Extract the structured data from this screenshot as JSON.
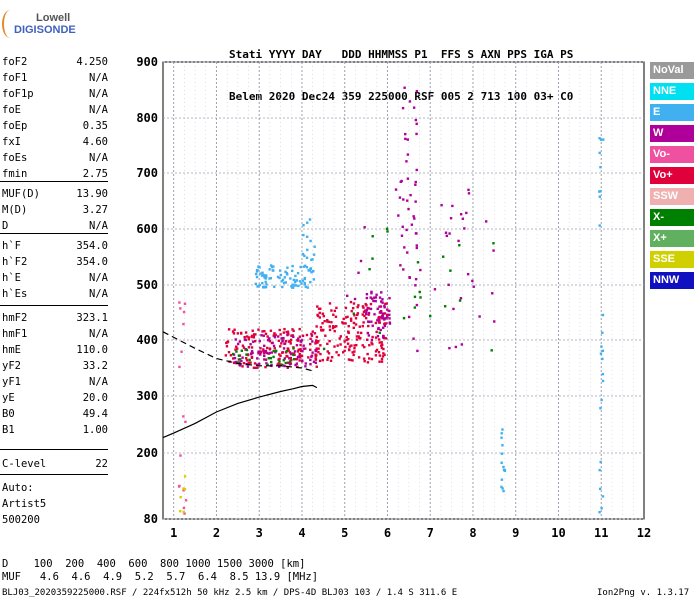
{
  "logo": {
    "line1": "Lowell",
    "line2": "DIGISONDE"
  },
  "header": {
    "row1": "Stati YYYY DAY   DDD HHMMSS P1  FFS S AXN PPS IGA PS",
    "row2": "Belem 2020 Dec24 359 225000 RSF 005 2 713 100 03+ C0"
  },
  "params": [
    {
      "k": "foF2",
      "v": "4.250"
    },
    {
      "k": "foF1",
      "v": "N/A"
    },
    {
      "k": "foF1p",
      "v": "N/A"
    },
    {
      "k": "foE",
      "v": "N/A"
    },
    {
      "k": "foEp",
      "v": "0.35"
    },
    {
      "k": "fxI",
      "v": "4.60"
    },
    {
      "k": "foEs",
      "v": "N/A"
    },
    {
      "k": "fmin",
      "v": "2.75"
    },
    {
      "k": "MUF(D)",
      "v": "13.90"
    },
    {
      "k": "M(D)",
      "v": "3.27"
    },
    {
      "k": "D",
      "v": "N/A"
    },
    {
      "k": "h`F",
      "v": "354.0"
    },
    {
      "k": "h`F2",
      "v": "354.0"
    },
    {
      "k": "h`E",
      "v": "N/A"
    },
    {
      "k": "h`Es",
      "v": "N/A"
    },
    {
      "k": "hmF2",
      "v": "323.1"
    },
    {
      "k": "hmF1",
      "v": "N/A"
    },
    {
      "k": "hmE",
      "v": "110.0"
    },
    {
      "k": "yF2",
      "v": "33.2"
    },
    {
      "k": "yF1",
      "v": "N/A"
    },
    {
      "k": "yE",
      "v": "20.0"
    },
    {
      "k": "B0",
      "v": "49.4"
    },
    {
      "k": "B1",
      "v": "1.00"
    },
    {
      "k": "C-level",
      "v": "22"
    }
  ],
  "auto": {
    "line1": "Auto:",
    "line2": "Artist5",
    "line3": "500200"
  },
  "legend": [
    {
      "label": "NoVal",
      "bg": "#9a9a9a",
      "fg": "#ffffff"
    },
    {
      "label": "NNE",
      "bg": "#00e0f0",
      "fg": "#ffffff"
    },
    {
      "label": "E",
      "bg": "#40b0f0",
      "fg": "#ffffff"
    },
    {
      "label": "W",
      "bg": "#b0009a",
      "fg": "#ffffff"
    },
    {
      "label": "Vo-",
      "bg": "#f050a0",
      "fg": "#ffffff"
    },
    {
      "label": "Vo+",
      "bg": "#e0003a",
      "fg": "#ffffff"
    },
    {
      "label": "SSW",
      "bg": "#f0b0b0",
      "fg": "#ffffff"
    },
    {
      "label": "X-",
      "bg": "#008000",
      "fg": "#ffffff"
    },
    {
      "label": "X+",
      "bg": "#60b060",
      "fg": "#ffffff"
    },
    {
      "label": "SSE",
      "bg": "#d0d000",
      "fg": "#ffffff"
    },
    {
      "label": "NNW",
      "bg": "#1010c0",
      "fg": "#ffffff"
    }
  ],
  "footer": {
    "drow": "D    100  200  400  600  800 1000 1500 3000 [km]",
    "murow": "MUF   4.6  4.6  4.9  5.2  5.7  6.4  8.5 13.9 [MHz]",
    "file": "BLJ03_2020359225000.RSF / 224fx512h 50 kHz 2.5 km / DPS-4D BLJ03 103 / 1.4 S 311.6 E",
    "version": "Ion2Png v. 1.3.17"
  },
  "chart_data": {
    "type": "scatter",
    "xlim": [
      0.75,
      12
    ],
    "ylim": [
      80,
      900
    ],
    "xticks": [
      1,
      2,
      3,
      4,
      5,
      6,
      7,
      8,
      9,
      10,
      11,
      12
    ],
    "yticks": [
      80,
      200,
      300,
      400,
      500,
      600,
      700,
      800,
      900
    ],
    "grid": true,
    "profile": {
      "x": [
        0.75,
        1.0,
        1.5,
        2.0,
        2.5,
        3.0,
        3.5,
        3.8,
        4.0,
        4.25,
        4.35
      ],
      "y": [
        227,
        235,
        252,
        272,
        287,
        298,
        308,
        313,
        317,
        319,
        315
      ]
    },
    "extrapolated": {
      "x": [
        0.75,
        1.5,
        2.0,
        2.5,
        3.0,
        3.5,
        4.0,
        4.25
      ],
      "y": [
        415,
        385,
        367,
        358,
        354,
        354,
        350,
        345
      ]
    },
    "clusters": [
      {
        "name": "F-trace",
        "color": "#e0003a",
        "xr": [
          2.2,
          4.4
        ],
        "yr": [
          350,
          420
        ],
        "n": 170
      },
      {
        "name": "F-trace-mag",
        "color": "#b0009a",
        "xr": [
          2.4,
          4.4
        ],
        "yr": [
          352,
          410
        ],
        "n": 90
      },
      {
        "name": "F-trace-green",
        "color": "#008000",
        "xr": [
          2.2,
          4.0
        ],
        "yr": [
          355,
          385
        ],
        "n": 25
      },
      {
        "name": "F-high",
        "color": "#e0003a",
        "xr": [
          4.3,
          6.0
        ],
        "yr": [
          360,
          470
        ],
        "n": 190
      },
      {
        "name": "F-high-mag",
        "color": "#b0009a",
        "xr": [
          5.5,
          6.1
        ],
        "yr": [
          400,
          490
        ],
        "n": 60
      },
      {
        "name": "F2-vert",
        "color": "#b0009a",
        "xr": [
          6.3,
          6.7
        ],
        "yr": [
          480,
          870
        ],
        "n": 40
      },
      {
        "name": "oblique-E",
        "color": "#40b0f0",
        "xr": [
          2.9,
          4.3
        ],
        "yr": [
          495,
          535
        ],
        "n": 90
      },
      {
        "name": "oblique-E2",
        "color": "#40b0f0",
        "xr": [
          4.0,
          4.3
        ],
        "yr": [
          540,
          620
        ],
        "n": 14
      },
      {
        "name": "scatter-mag",
        "color": "#b0009a",
        "xr": [
          5.0,
          8.5
        ],
        "yr": [
          380,
          700
        ],
        "n": 45
      },
      {
        "name": "scatter-green",
        "color": "#008000",
        "xr": [
          4.5,
          8.5
        ],
        "yr": [
          380,
          620
        ],
        "n": 22
      },
      {
        "name": "col8.7",
        "color": "#40b0f0",
        "xr": [
          8.65,
          8.75
        ],
        "yr": [
          120,
          260
        ],
        "n": 14
      },
      {
        "name": "col11",
        "color": "#40b0f0",
        "xr": [
          10.95,
          11.05
        ],
        "yr": [
          90,
          860
        ],
        "n": 25
      },
      {
        "name": "col1",
        "color": "#f050a0",
        "xr": [
          1.1,
          1.3
        ],
        "yr": [
          85,
          470
        ],
        "n": 16
      },
      {
        "name": "col1y",
        "color": "#d0d000",
        "xr": [
          1.1,
          1.3
        ],
        "yr": [
          85,
          160
        ],
        "n": 6
      }
    ]
  }
}
